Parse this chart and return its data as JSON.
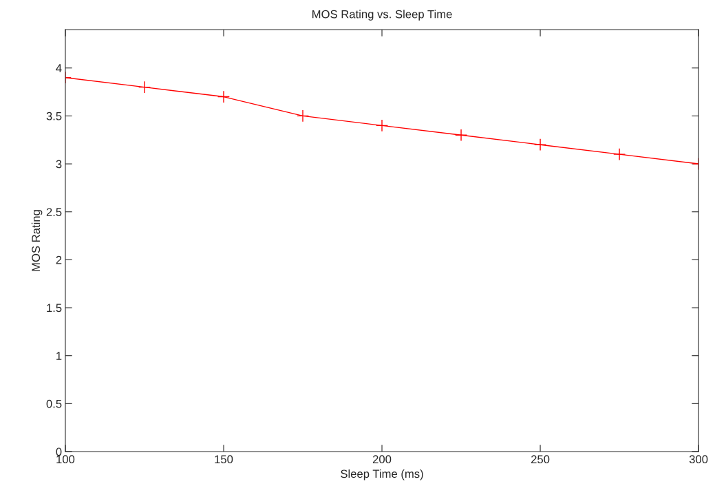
{
  "chart_data": {
    "type": "line",
    "title": "MOS Rating vs. Sleep Time",
    "xlabel": "Sleep Time (ms)",
    "ylabel": "MOS Rating",
    "x": [
      100,
      125,
      150,
      175,
      200,
      225,
      250,
      275,
      300
    ],
    "series": [
      {
        "color": "#ff0000",
        "values": [
          3.9,
          3.8,
          3.7,
          3.5,
          3.4,
          3.3,
          3.2,
          3.1,
          3.0
        ]
      }
    ],
    "xlim": [
      100,
      300
    ],
    "xticks": [
      100,
      150,
      200,
      250,
      300
    ],
    "ylim": [
      0,
      4.4
    ],
    "yticks": [
      0,
      0.5,
      1,
      1.5,
      2,
      2.5,
      3,
      3.5,
      4
    ],
    "marker": "cross",
    "line_style": "solid",
    "grid": false
  }
}
